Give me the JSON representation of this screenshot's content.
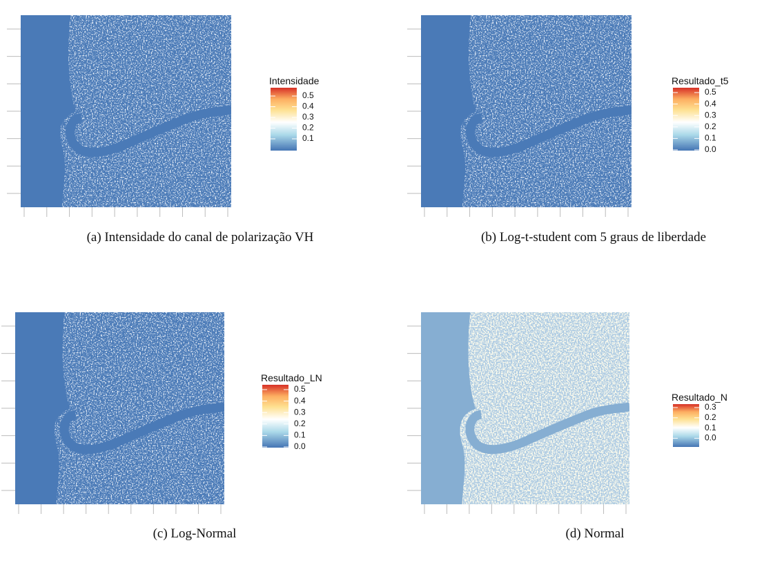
{
  "panels": [
    {
      "legend_title": "Intensidade",
      "ticks": [
        "0.1",
        "0.2",
        "0.3",
        "0.4",
        "0.5"
      ],
      "caption": "(a) Intensidade do canal de polarização VH"
    },
    {
      "legend_title": "Resultado_t5",
      "ticks": [
        "0.0",
        "0.1",
        "0.2",
        "0.3",
        "0.4",
        "0.5"
      ],
      "caption": "(b) Log-t-student com 5 graus de liberdade"
    },
    {
      "legend_title": "Resultado_LN",
      "ticks": [
        "0.0",
        "0.1",
        "0.2",
        "0.3",
        "0.4",
        "0.5"
      ],
      "caption": "(c) Log-Normal"
    },
    {
      "legend_title": "Resultado_N",
      "ticks": [
        "0.0",
        "0.1",
        "0.2",
        "0.3"
      ],
      "caption": "(d) Normal"
    }
  ]
}
